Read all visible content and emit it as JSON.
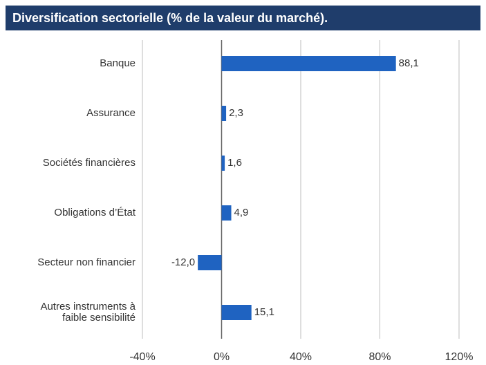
{
  "chart_data": {
    "type": "bar",
    "orientation": "horizontal",
    "title": "Diversification sectorielle (% de la valeur du marché).",
    "categories": [
      "Banque",
      "Assurance",
      "Sociétés financières",
      "Obligations d’État",
      "Secteur non financier",
      "Autres instruments à faible sensibilité"
    ],
    "values": [
      88.1,
      2.3,
      1.6,
      4.9,
      -12.0,
      15.1
    ],
    "value_labels": [
      "88,1",
      "2,3",
      "1,6",
      "4,9",
      "-12,0",
      "15,1"
    ],
    "color": "#1f63c1",
    "xlim": [
      -40,
      120
    ],
    "xticks": [
      {
        "value": -40,
        "label": "-40%"
      },
      {
        "value": 0,
        "label": "0%"
      },
      {
        "value": 40,
        "label": "40%"
      },
      {
        "value": 80,
        "label": "80%"
      },
      {
        "value": 120,
        "label": "120%"
      }
    ],
    "grid": true
  }
}
